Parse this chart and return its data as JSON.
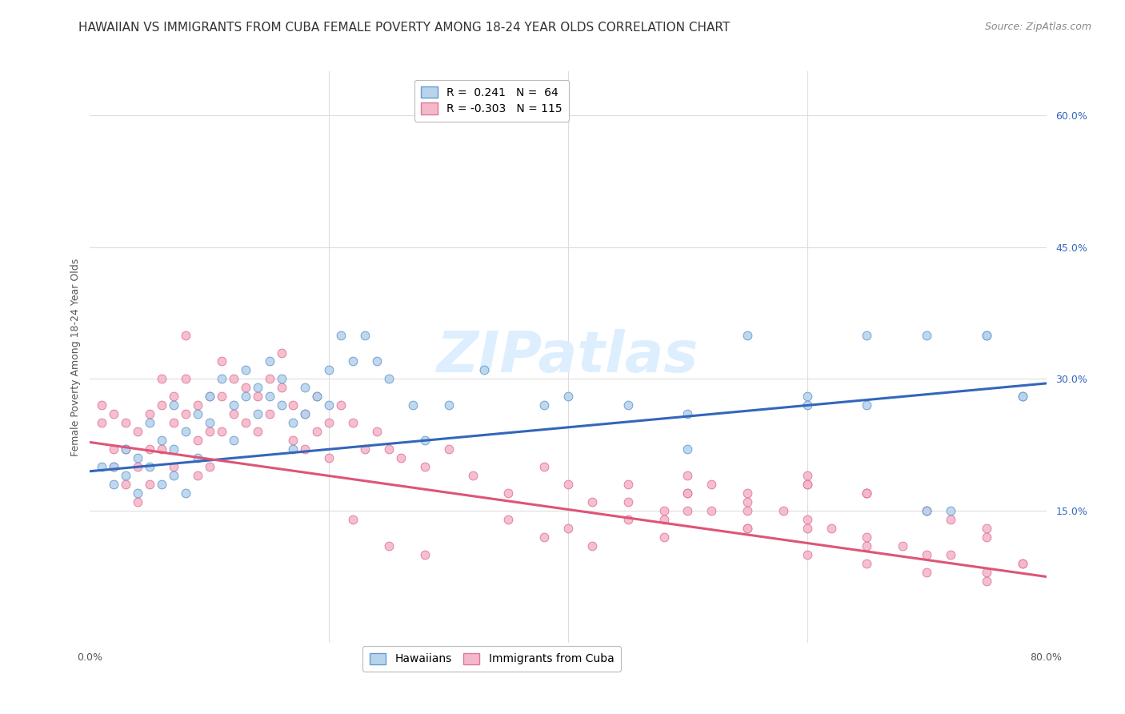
{
  "title": "HAWAIIAN VS IMMIGRANTS FROM CUBA FEMALE POVERTY AMONG 18-24 YEAR OLDS CORRELATION CHART",
  "source": "Source: ZipAtlas.com",
  "ylabel": "Female Poverty Among 18-24 Year Olds",
  "xlim": [
    0.0,
    0.8
  ],
  "ylim": [
    0.0,
    0.65
  ],
  "xtick_values": [
    0.0,
    0.2,
    0.4,
    0.6,
    0.8
  ],
  "xticklabels": [
    "0.0%",
    "",
    "",
    "",
    "80.0%"
  ],
  "ytick_right_labels": [
    "60.0%",
    "45.0%",
    "30.0%",
    "15.0%"
  ],
  "ytick_right_values": [
    0.6,
    0.45,
    0.3,
    0.15
  ],
  "watermark": "ZIPatlas",
  "blue_color": "#b8d4ed",
  "pink_color": "#f5b8cb",
  "blue_edge": "#6699cc",
  "pink_edge": "#dd7799",
  "blue_line_color": "#3366bb",
  "pink_line_color": "#dd5577",
  "hawaiians_label": "Hawaiians",
  "cuba_label": "Immigrants from Cuba",
  "grid_color": "#dddddd",
  "background_color": "#ffffff",
  "title_fontsize": 11,
  "source_fontsize": 9,
  "axis_label_fontsize": 9,
  "tick_fontsize": 9,
  "legend_fontsize": 10,
  "watermark_fontsize": 52,
  "watermark_color": "#ddeeff",
  "marker_size": 60,
  "blue_line_x0": 0.0,
  "blue_line_x1": 0.8,
  "blue_line_y0": 0.195,
  "blue_line_y1": 0.295,
  "pink_line_x0": 0.0,
  "pink_line_x1": 0.8,
  "pink_line_y0": 0.228,
  "pink_line_y1": 0.075,
  "blue_scatter_x": [
    0.01,
    0.02,
    0.02,
    0.03,
    0.03,
    0.04,
    0.04,
    0.05,
    0.05,
    0.06,
    0.06,
    0.07,
    0.07,
    0.07,
    0.08,
    0.08,
    0.09,
    0.09,
    0.1,
    0.1,
    0.11,
    0.12,
    0.12,
    0.13,
    0.13,
    0.14,
    0.14,
    0.15,
    0.15,
    0.16,
    0.16,
    0.17,
    0.17,
    0.18,
    0.18,
    0.19,
    0.2,
    0.2,
    0.21,
    0.22,
    0.23,
    0.24,
    0.25,
    0.27,
    0.28,
    0.3,
    0.33,
    0.38,
    0.4,
    0.45,
    0.5,
    0.55,
    0.6,
    0.65,
    0.7,
    0.72,
    0.75,
    0.78,
    0.5,
    0.6,
    0.65,
    0.7,
    0.75,
    0.78
  ],
  "blue_scatter_y": [
    0.2,
    0.2,
    0.18,
    0.22,
    0.19,
    0.21,
    0.17,
    0.25,
    0.2,
    0.23,
    0.18,
    0.27,
    0.22,
    0.19,
    0.24,
    0.17,
    0.26,
    0.21,
    0.28,
    0.25,
    0.3,
    0.27,
    0.23,
    0.31,
    0.28,
    0.29,
    0.26,
    0.32,
    0.28,
    0.3,
    0.27,
    0.25,
    0.22,
    0.29,
    0.26,
    0.28,
    0.31,
    0.27,
    0.35,
    0.32,
    0.35,
    0.32,
    0.3,
    0.27,
    0.23,
    0.27,
    0.31,
    0.27,
    0.28,
    0.27,
    0.26,
    0.35,
    0.28,
    0.27,
    0.35,
    0.15,
    0.35,
    0.28,
    0.22,
    0.27,
    0.35,
    0.15,
    0.35,
    0.28
  ],
  "pink_scatter_x": [
    0.01,
    0.01,
    0.02,
    0.02,
    0.02,
    0.03,
    0.03,
    0.03,
    0.04,
    0.04,
    0.04,
    0.05,
    0.05,
    0.05,
    0.06,
    0.06,
    0.06,
    0.07,
    0.07,
    0.07,
    0.08,
    0.08,
    0.08,
    0.09,
    0.09,
    0.09,
    0.1,
    0.1,
    0.1,
    0.11,
    0.11,
    0.11,
    0.12,
    0.12,
    0.13,
    0.13,
    0.14,
    0.14,
    0.15,
    0.15,
    0.16,
    0.16,
    0.17,
    0.17,
    0.18,
    0.18,
    0.19,
    0.19,
    0.2,
    0.2,
    0.21,
    0.22,
    0.23,
    0.24,
    0.25,
    0.26,
    0.28,
    0.3,
    0.32,
    0.35,
    0.38,
    0.4,
    0.42,
    0.45,
    0.48,
    0.5,
    0.52,
    0.55,
    0.58,
    0.6,
    0.62,
    0.65,
    0.68,
    0.7,
    0.72,
    0.75,
    0.78,
    0.6,
    0.65,
    0.7,
    0.75,
    0.5,
    0.55,
    0.6,
    0.65,
    0.22,
    0.25,
    0.28,
    0.5,
    0.55,
    0.6,
    0.65,
    0.7,
    0.72,
    0.75,
    0.78,
    0.6,
    0.65,
    0.7,
    0.75,
    0.5,
    0.55,
    0.6,
    0.65,
    0.45,
    0.48,
    0.52,
    0.55,
    0.4,
    0.42,
    0.45,
    0.48,
    0.35,
    0.38
  ],
  "pink_scatter_y": [
    0.27,
    0.25,
    0.26,
    0.22,
    0.2,
    0.25,
    0.22,
    0.18,
    0.24,
    0.2,
    0.16,
    0.26,
    0.22,
    0.18,
    0.3,
    0.27,
    0.22,
    0.28,
    0.25,
    0.2,
    0.35,
    0.3,
    0.26,
    0.27,
    0.23,
    0.19,
    0.28,
    0.24,
    0.2,
    0.32,
    0.28,
    0.24,
    0.3,
    0.26,
    0.29,
    0.25,
    0.28,
    0.24,
    0.3,
    0.26,
    0.33,
    0.29,
    0.27,
    0.23,
    0.26,
    0.22,
    0.28,
    0.24,
    0.25,
    0.21,
    0.27,
    0.25,
    0.22,
    0.24,
    0.22,
    0.21,
    0.2,
    0.22,
    0.19,
    0.17,
    0.2,
    0.18,
    0.16,
    0.18,
    0.15,
    0.17,
    0.15,
    0.13,
    0.15,
    0.14,
    0.13,
    0.12,
    0.11,
    0.15,
    0.14,
    0.12,
    0.09,
    0.18,
    0.17,
    0.15,
    0.13,
    0.15,
    0.13,
    0.18,
    0.17,
    0.14,
    0.11,
    0.1,
    0.17,
    0.15,
    0.13,
    0.11,
    0.1,
    0.1,
    0.08,
    0.09,
    0.1,
    0.09,
    0.08,
    0.07,
    0.19,
    0.17,
    0.19,
    0.17,
    0.16,
    0.14,
    0.18,
    0.16,
    0.13,
    0.11,
    0.14,
    0.12,
    0.14,
    0.12
  ]
}
